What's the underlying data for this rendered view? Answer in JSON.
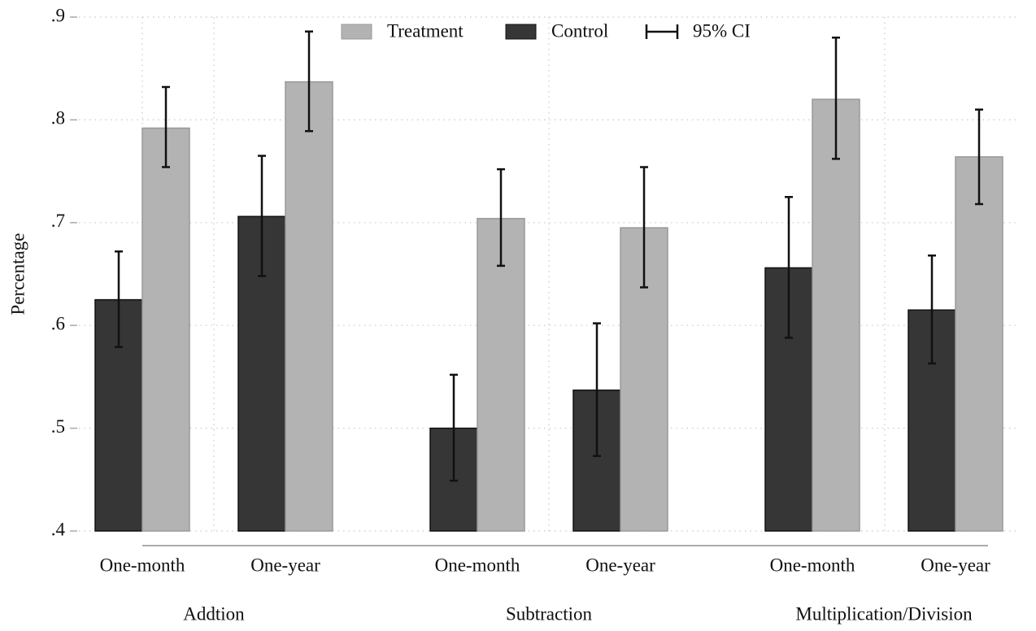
{
  "chart_data": {
    "type": "bar",
    "y_label": "Percentage",
    "groups": [
      "Addtion",
      "Subtraction",
      "Multiplication/Division"
    ],
    "categories": [
      "One-month",
      "One-year",
      "One-month",
      "One-year",
      "One-month",
      "One-year"
    ],
    "series": [
      {
        "name": "Control",
        "color": "#363636",
        "values": [
          0.625,
          0.706,
          0.5,
          0.537,
          0.656,
          0.615
        ],
        "ci_low": [
          0.579,
          0.648,
          0.449,
          0.473,
          0.588,
          0.563
        ],
        "ci_high": [
          0.672,
          0.765,
          0.552,
          0.602,
          0.725,
          0.668
        ]
      },
      {
        "name": "Treatment",
        "color": "#b3b3b3",
        "values": [
          0.792,
          0.837,
          0.704,
          0.695,
          0.82,
          0.764
        ],
        "ci_low": [
          0.754,
          0.789,
          0.658,
          0.637,
          0.762,
          0.718
        ],
        "ci_high": [
          0.832,
          0.886,
          0.752,
          0.754,
          0.88,
          0.81
        ]
      }
    ],
    "error_label": "95% CI",
    "ylim": [
      0.4,
      0.9
    ],
    "yticks": [
      {
        "value": 0.4,
        "label": ".4"
      },
      {
        "value": 0.5,
        "label": ".5"
      },
      {
        "value": 0.6,
        "label": ".6"
      },
      {
        "value": 0.7,
        "label": ".7"
      },
      {
        "value": 0.8,
        "label": ".8"
      },
      {
        "value": 0.9,
        "label": ".9"
      }
    ],
    "grid": true
  }
}
